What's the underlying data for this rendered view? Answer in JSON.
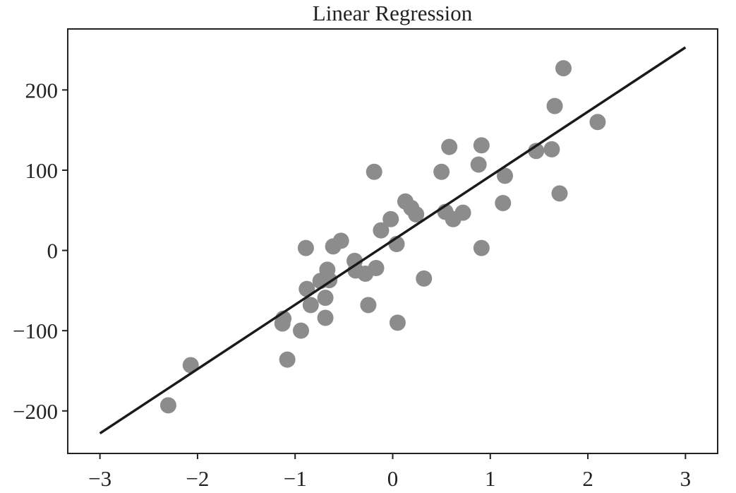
{
  "chart_data": {
    "type": "scatter",
    "title": "Linear Regression",
    "xlabel": "",
    "ylabel": "",
    "xlim": [
      -3.33,
      3.33
    ],
    "ylim": [
      -253,
      276
    ],
    "x_ticks": [
      -3,
      -2,
      -1,
      0,
      1,
      2,
      3
    ],
    "y_ticks": [
      -200,
      -100,
      0,
      100,
      200
    ],
    "x_tick_labels": [
      "−3",
      "−2",
      "−1",
      "0",
      "1",
      "2",
      "3"
    ],
    "y_tick_labels": [
      "−200",
      "−100",
      "0",
      "100",
      "200"
    ],
    "grid": false,
    "legend": "none",
    "point_color": "#8c8c8c",
    "line_color": "#1a1a1a",
    "points": [
      {
        "x": -2.3,
        "y": -193
      },
      {
        "x": -2.07,
        "y": -143
      },
      {
        "x": -1.13,
        "y": -91
      },
      {
        "x": -1.12,
        "y": -85
      },
      {
        "x": -1.08,
        "y": -136
      },
      {
        "x": -0.94,
        "y": -100
      },
      {
        "x": -0.89,
        "y": 3
      },
      {
        "x": -0.88,
        "y": -48
      },
      {
        "x": -0.84,
        "y": -68
      },
      {
        "x": -0.74,
        "y": -38
      },
      {
        "x": -0.69,
        "y": -84
      },
      {
        "x": -0.69,
        "y": -59
      },
      {
        "x": -0.67,
        "y": -24
      },
      {
        "x": -0.65,
        "y": -37
      },
      {
        "x": -0.61,
        "y": 5
      },
      {
        "x": -0.53,
        "y": 12
      },
      {
        "x": -0.39,
        "y": -13
      },
      {
        "x": -0.38,
        "y": -25
      },
      {
        "x": -0.28,
        "y": -29
      },
      {
        "x": -0.25,
        "y": -68
      },
      {
        "x": -0.19,
        "y": 98
      },
      {
        "x": -0.17,
        "y": -22
      },
      {
        "x": -0.12,
        "y": 25
      },
      {
        "x": -0.02,
        "y": 39
      },
      {
        "x": 0.04,
        "y": 8
      },
      {
        "x": 0.05,
        "y": -90
      },
      {
        "x": 0.13,
        "y": 61
      },
      {
        "x": 0.19,
        "y": 53
      },
      {
        "x": 0.24,
        "y": 45
      },
      {
        "x": 0.32,
        "y": -35
      },
      {
        "x": 0.5,
        "y": 98
      },
      {
        "x": 0.54,
        "y": 48
      },
      {
        "x": 0.58,
        "y": 129
      },
      {
        "x": 0.62,
        "y": 39
      },
      {
        "x": 0.72,
        "y": 47
      },
      {
        "x": 0.88,
        "y": 107
      },
      {
        "x": 0.91,
        "y": 131
      },
      {
        "x": 0.91,
        "y": 3
      },
      {
        "x": 1.13,
        "y": 59
      },
      {
        "x": 1.15,
        "y": 93
      },
      {
        "x": 1.47,
        "y": 124
      },
      {
        "x": 1.63,
        "y": 126
      },
      {
        "x": 1.66,
        "y": 180
      },
      {
        "x": 1.71,
        "y": 71
      },
      {
        "x": 1.75,
        "y": 227
      },
      {
        "x": 2.1,
        "y": 160
      }
    ],
    "regression_line": {
      "x1": -3,
      "y1": -228,
      "x2": 3,
      "y2": 253
    }
  }
}
